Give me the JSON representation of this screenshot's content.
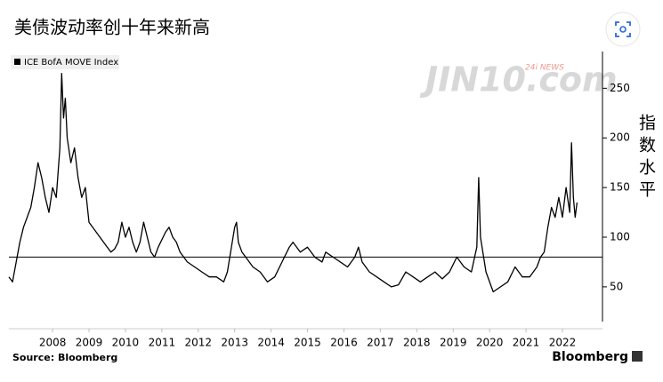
{
  "chart_data": {
    "type": "line",
    "title": "美债波动率创十年来新高",
    "y_label": "指数水平",
    "source": "Source: Bloomberg",
    "brand": "Bloomberg",
    "watermark": "JIN10.com",
    "watermark_tag": "24i NEWS",
    "series": [
      {
        "name": "ICE BofA MOVE Index",
        "color": "#000000",
        "x": [
          2007.3,
          2007.4,
          2007.5,
          2007.6,
          2007.7,
          2007.8,
          2007.9,
          2008.0,
          2008.1,
          2008.2,
          2008.3,
          2008.4,
          2008.5,
          2008.6,
          2008.7,
          2008.75,
          2008.8,
          2008.85,
          2008.9,
          2009.0,
          2009.1,
          2009.2,
          2009.3,
          2009.4,
          2009.5,
          2009.6,
          2009.7,
          2009.8,
          2009.9,
          2010.0,
          2010.1,
          2010.2,
          2010.3,
          2010.4,
          2010.5,
          2010.6,
          2010.7,
          2010.8,
          2010.9,
          2011.0,
          2011.1,
          2011.2,
          2011.3,
          2011.4,
          2011.6,
          2011.7,
          2011.8,
          2011.9,
          2012.0,
          2012.2,
          2012.4,
          2012.6,
          2012.8,
          2013.0,
          2013.2,
          2013.3,
          2013.5,
          2013.55,
          2013.6,
          2013.7,
          2013.9,
          2014.0,
          2014.2,
          2014.4,
          2014.6,
          2014.8,
          2015.0,
          2015.1,
          2015.3,
          2015.5,
          2015.7,
          2015.9,
          2016.0,
          2016.2,
          2016.4,
          2016.6,
          2016.8,
          2016.9,
          2017.0,
          2017.2,
          2017.4,
          2017.6,
          2017.8,
          2018.0,
          2018.2,
          2018.4,
          2018.6,
          2018.8,
          2019.0,
          2019.2,
          2019.4,
          2019.6,
          2019.8,
          2020.0,
          2020.15,
          2020.2,
          2020.25,
          2020.4,
          2020.6,
          2020.8,
          2021.0,
          2021.2,
          2021.4,
          2021.6,
          2021.8,
          2021.9,
          2022.0,
          2022.1,
          2022.2,
          2022.3,
          2022.4,
          2022.5,
          2022.6,
          2022.7,
          2022.75,
          2022.8,
          2022.85,
          2022.9
        ],
        "values": [
          60,
          55,
          75,
          95,
          110,
          120,
          130,
          150,
          175,
          160,
          140,
          125,
          150,
          140,
          190,
          265,
          220,
          240,
          200,
          175,
          190,
          160,
          140,
          150,
          115,
          110,
          105,
          100,
          95,
          90,
          85,
          88,
          95,
          115,
          100,
          110,
          95,
          85,
          95,
          115,
          100,
          85,
          80,
          90,
          105,
          110,
          100,
          95,
          85,
          75,
          70,
          65,
          60,
          60,
          55,
          65,
          110,
          115,
          95,
          85,
          75,
          70,
          65,
          55,
          60,
          75,
          90,
          95,
          85,
          90,
          80,
          75,
          85,
          80,
          75,
          70,
          80,
          90,
          75,
          65,
          60,
          55,
          50,
          52,
          65,
          60,
          55,
          60,
          65,
          58,
          65,
          80,
          70,
          65,
          90,
          160,
          100,
          65,
          45,
          50,
          55,
          70,
          60,
          60,
          70,
          80,
          85,
          110,
          130,
          120,
          140,
          120,
          150,
          125,
          195,
          140,
          120,
          135
        ]
      }
    ],
    "reference_line": 80,
    "xlim": [
      2007.3,
      2023.6
    ],
    "xticks": [
      {
        "value": 2008.5,
        "label": "2008"
      },
      {
        "value": 2009.5,
        "label": "2009"
      },
      {
        "value": 2010.5,
        "label": "2010"
      },
      {
        "value": 2011.5,
        "label": "2011"
      },
      {
        "value": 2012.5,
        "label": "2012"
      },
      {
        "value": 2013.5,
        "label": "2013"
      },
      {
        "value": 2014.5,
        "label": "2014"
      },
      {
        "value": 2015.5,
        "label": "2015"
      },
      {
        "value": 2016.5,
        "label": "2016"
      },
      {
        "value": 2017.5,
        "label": "2017"
      },
      {
        "value": 2018.5,
        "label": "2018"
      },
      {
        "value": 2019.5,
        "label": "2019"
      },
      {
        "value": 2020.5,
        "label": "2020"
      },
      {
        "value": 2021.5,
        "label": "2021"
      },
      {
        "value": 2022.5,
        "label": "2022"
      }
    ],
    "ylim": [
      15,
      287
    ],
    "yticks": [
      50,
      100,
      150,
      200,
      250
    ],
    "y_axis_side": "right"
  }
}
